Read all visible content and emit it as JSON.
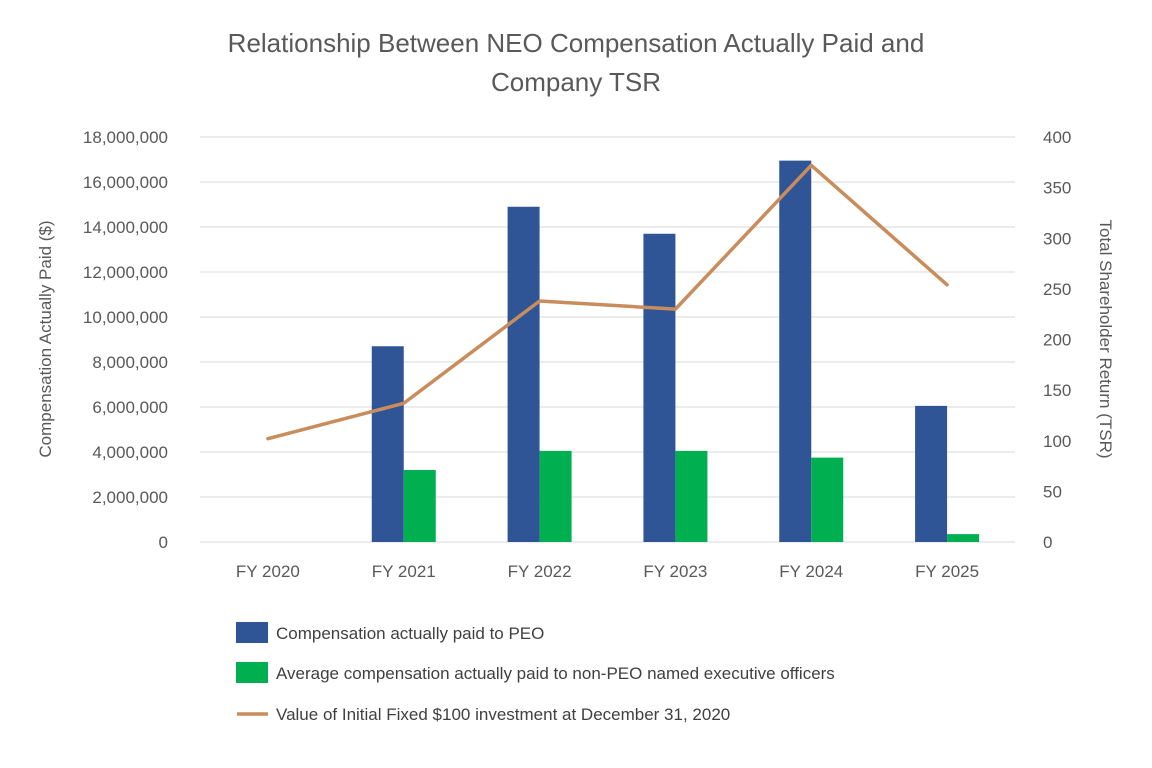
{
  "chart_data": {
    "type": "bar",
    "title_lines": [
      "Relationship Between NEO Compensation Actually Paid and",
      "Company TSR"
    ],
    "categories": [
      "FY 2020",
      "FY 2021",
      "FY 2022",
      "FY 2023",
      "FY 2024",
      "FY 2025"
    ],
    "series": [
      {
        "name": "Compensation actually paid to PEO",
        "type": "bar",
        "axis": "left",
        "color": "#2F5597",
        "values": [
          null,
          8700000,
          14900000,
          13700000,
          16950000,
          6050000
        ]
      },
      {
        "name": "Average compensation actually paid to non-PEO named executive officers",
        "type": "bar",
        "axis": "left",
        "color": "#00B050",
        "values": [
          null,
          3200000,
          4050000,
          4050000,
          3750000,
          350000
        ]
      },
      {
        "name": "Value of Initial Fixed $100 investment at December 31, 2020",
        "type": "line",
        "axis": "right",
        "color": "#C98C5C",
        "values": [
          102,
          137,
          238,
          230,
          372,
          254
        ]
      }
    ],
    "y_left": {
      "label": "Compensation Actually Paid ($)",
      "range": [
        0,
        18000000
      ],
      "tick_values": [
        0,
        2000000,
        4000000,
        6000000,
        8000000,
        10000000,
        12000000,
        14000000,
        16000000,
        18000000
      ],
      "tick_labels": [
        "0",
        "2,000,000",
        "4,000,000",
        "6,000,000",
        "8,000,000",
        "10,000,000",
        "12,000,000",
        "14,000,000",
        "16,000,000",
        "18,000,000"
      ]
    },
    "y_right": {
      "label": "Total Shareholder Return (TSR)",
      "range": [
        0,
        400
      ],
      "tick_values": [
        0,
        50,
        100,
        150,
        200,
        250,
        300,
        350,
        400
      ],
      "tick_labels": [
        "0",
        "50",
        "100",
        "150",
        "200",
        "250",
        "300",
        "350",
        "400"
      ]
    },
    "grid": true,
    "legend_position": "bottom"
  }
}
